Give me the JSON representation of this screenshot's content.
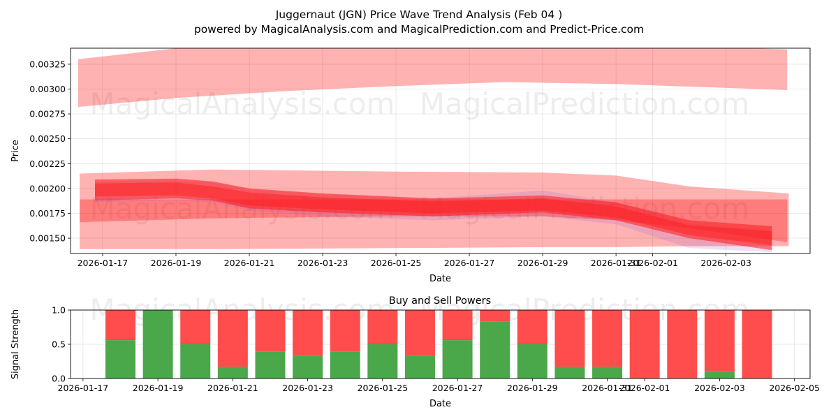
{
  "title_line1": "Juggernaut (JGN) Price Wave Trend Analysis (Feb 04 )",
  "title_line2": "powered by MagicalAnalysis.com and MagicalPrediction.com and Predict-Price.com",
  "watermark_left": "MagicalAnalysis.com",
  "watermark_right": "MagicalPrediction.com",
  "chart_data": [
    {
      "type": "area",
      "title": "",
      "xlabel": "Date",
      "ylabel": "Price",
      "ylim": [
        0.001346,
        0.003411
      ],
      "xlim": [
        "2026-01-16T03:00",
        "2026-02-05T07:00"
      ],
      "grid": true,
      "xticks": [
        "2026-01-17",
        "2026-01-19",
        "2026-01-21",
        "2026-01-23",
        "2026-01-25",
        "2026-01-27",
        "2026-01-29",
        "2026-01-31",
        "2026-02-01",
        "2026-02-03"
      ],
      "yticks": [
        0.0015,
        0.00175,
        0.002,
        0.00225,
        0.0025,
        0.00275,
        0.003,
        0.00325
      ],
      "ytick_labels": [
        "0.00150",
        "0.00175",
        "0.00200",
        "0.00225",
        "0.00250",
        "0.00275",
        "0.00300",
        "0.00325"
      ],
      "bands": [
        {
          "name": "upper-band",
          "color": "#ff0000",
          "opacity": 0.3,
          "x": [
            "2026-01-16T08:00",
            "2026-01-19",
            "2026-01-22",
            "2026-01-25",
            "2026-01-28",
            "2026-01-31",
            "2026-02-04T16:00"
          ],
          "upper": [
            0.0033,
            0.00341,
            0.00345,
            0.00345,
            0.00345,
            0.00345,
            0.0034
          ],
          "lower": [
            0.00282,
            0.00291,
            0.00298,
            0.00303,
            0.00307,
            0.00305,
            0.00299
          ]
        },
        {
          "name": "wide-band",
          "color": "#ff0000",
          "opacity": 0.3,
          "x": [
            "2026-01-16T09:00",
            "2026-01-20",
            "2026-01-25",
            "2026-01-29",
            "2026-01-31",
            "2026-02-02",
            "2026-02-04T17:00"
          ],
          "upper": [
            0.00215,
            0.00219,
            0.00217,
            0.00216,
            0.00213,
            0.00202,
            0.00195
          ],
          "lower": [
            0.00139,
            0.00139,
            0.0014,
            0.00141,
            0.00141,
            0.00142,
            0.00142
          ]
        },
        {
          "name": "mid-band",
          "color": "#ff0000",
          "opacity": 0.3,
          "x": [
            "2026-01-16T09:00",
            "2026-01-20",
            "2026-01-25",
            "2026-01-29",
            "2026-01-31",
            "2026-02-02",
            "2026-02-04T16:00"
          ],
          "upper": [
            0.00189,
            0.00189,
            0.00189,
            0.00189,
            0.00189,
            0.00189,
            0.00189
          ],
          "lower": [
            0.00166,
            0.0017,
            0.00172,
            0.00172,
            0.00168,
            0.0016,
            0.00146
          ]
        },
        {
          "name": "trend-band-purple",
          "color": "#9966cc",
          "opacity": 0.2,
          "x": [
            "2026-01-16T19:00",
            "2026-01-19",
            "2026-01-20",
            "2026-01-21",
            "2026-01-23",
            "2026-01-26",
            "2026-01-29",
            "2026-01-31",
            "2026-02-02",
            "2026-02-04T06:00"
          ],
          "upper": [
            0.00207,
            0.00208,
            0.00206,
            0.00199,
            0.00194,
            0.0019,
            0.00198,
            0.00186,
            0.00165,
            0.00158
          ],
          "lower": [
            0.00186,
            0.00188,
            0.00186,
            0.00178,
            0.00172,
            0.00168,
            0.00172,
            0.00164,
            0.0014,
            0.00136
          ]
        },
        {
          "name": "trend-band",
          "color": "#ff1a1a",
          "opacity": 0.55,
          "x": [
            "2026-01-16T19:00",
            "2026-01-19",
            "2026-01-20",
            "2026-01-21",
            "2026-01-23",
            "2026-01-26",
            "2026-01-29",
            "2026-01-31",
            "2026-02-02",
            "2026-02-04T06:00"
          ],
          "upper": [
            0.00209,
            0.0021,
            0.00207,
            0.002,
            0.00195,
            0.0019,
            0.00193,
            0.00186,
            0.00168,
            0.00162
          ],
          "lower": [
            0.00188,
            0.0019,
            0.00188,
            0.0018,
            0.00176,
            0.00172,
            0.00176,
            0.00168,
            0.0015,
            0.00138
          ]
        },
        {
          "name": "trend-core",
          "color": "#ff1a1a",
          "opacity": 0.45,
          "x": [
            "2026-01-16T19:00",
            "2026-01-19",
            "2026-01-20",
            "2026-01-21",
            "2026-01-23",
            "2026-01-26",
            "2026-01-29",
            "2026-01-31",
            "2026-02-02",
            "2026-02-04T06:00"
          ],
          "upper": [
            0.00205,
            0.00206,
            0.00202,
            0.00196,
            0.00191,
            0.00187,
            0.0019,
            0.00182,
            0.00163,
            0.00157
          ],
          "lower": [
            0.00192,
            0.00193,
            0.0019,
            0.00183,
            0.00179,
            0.00175,
            0.00178,
            0.00171,
            0.00153,
            0.00143
          ]
        }
      ]
    },
    {
      "type": "bar",
      "title": "Buy and Sell Powers",
      "xlabel": "Date",
      "ylabel": "Signal Strength",
      "ylim": [
        0,
        1
      ],
      "xlim": [
        "2026-01-16T16:00",
        "2026-02-05T10:00"
      ],
      "grid": true,
      "xticks": [
        "2026-01-17",
        "2026-01-19",
        "2026-01-21",
        "2026-01-23",
        "2026-01-25",
        "2026-01-27",
        "2026-01-29",
        "2026-01-31",
        "2026-02-01",
        "2026-02-03",
        "2026-02-05"
      ],
      "yticks": [
        0,
        0.5,
        1.0
      ],
      "ytick_labels": [
        "0.0",
        "0.5",
        "1.0"
      ],
      "categories": [
        "2026-01-18",
        "2026-01-19",
        "2026-01-20",
        "2026-01-21",
        "2026-01-22",
        "2026-01-23",
        "2026-01-24",
        "2026-01-25",
        "2026-01-26",
        "2026-01-27",
        "2026-01-28",
        "2026-01-29",
        "2026-01-30",
        "2026-01-31",
        "2026-02-01",
        "2026-02-02",
        "2026-02-03",
        "2026-02-04"
      ],
      "series": [
        {
          "name": "Buy",
          "color": "#4aa74a",
          "values": [
            0.56,
            1.0,
            0.5,
            0.17,
            0.39,
            0.33,
            0.39,
            0.5,
            0.33,
            0.56,
            0.83,
            0.5,
            0.17,
            0.17,
            0,
            0,
            0.11,
            0
          ]
        },
        {
          "name": "Sell",
          "color": "#ff4c4c",
          "values": [
            0.44,
            0,
            0.5,
            0.83,
            0.61,
            0.67,
            0.61,
            0.5,
            0.67,
            0.44,
            0.17,
            0.5,
            0.83,
            0.83,
            1,
            1,
            0.89,
            1
          ]
        }
      ]
    }
  ]
}
